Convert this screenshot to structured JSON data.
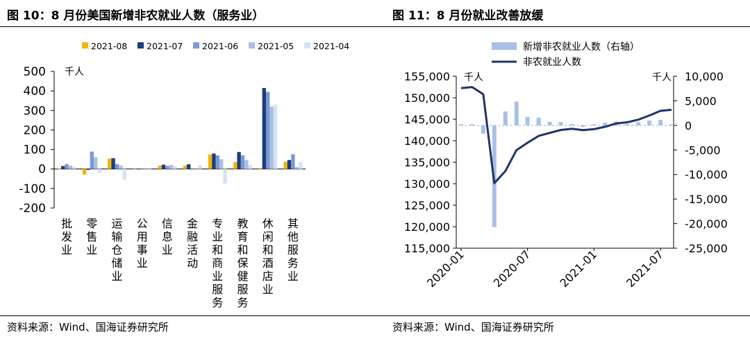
{
  "left": {
    "title": "图 10：8 月份美国新增非农就业人数（服务业）",
    "source": "资料来源：Wind、国海证券研究所",
    "unit": "千人"
  },
  "right": {
    "title": "图 11：8 月份就业改善放缓",
    "source": "资料来源：Wind、国海证券研究所",
    "unit_left": "千人",
    "unit_right": "千人"
  },
  "chart_data": [
    {
      "type": "bar",
      "categories": [
        "批发业",
        "零售业",
        "运输仓储业",
        "公用事业",
        "信息业",
        "金融活动",
        "专业和商业服务",
        "教育和保健服务",
        "休闲和酒店业",
        "其他服务业"
      ],
      "series": [
        {
          "name": "2021-08",
          "color": "#F2B705",
          "values": [
            1,
            -29,
            53,
            -1,
            17,
            18,
            74,
            35,
            0,
            37
          ]
        },
        {
          "name": "2021-07",
          "color": "#1F3F7A",
          "values": [
            15,
            -5,
            55,
            0,
            22,
            24,
            79,
            87,
            415,
            46
          ]
        },
        {
          "name": "2021-06",
          "color": "#7C99D3",
          "values": [
            25,
            89,
            25,
            -1,
            16,
            2,
            70,
            70,
            395,
            75
          ]
        },
        {
          "name": "2021-05",
          "color": "#A9C0E6",
          "values": [
            17,
            60,
            18,
            -1,
            20,
            0,
            50,
            45,
            320,
            10
          ]
        },
        {
          "name": "2021-04",
          "color": "#D6E2F4",
          "values": [
            10,
            -20,
            -55,
            -2,
            15,
            20,
            -75,
            20,
            330,
            35
          ]
        }
      ],
      "ylim": [
        -200,
        500
      ],
      "yticks": [
        -200,
        -100,
        0,
        100,
        200,
        300,
        400,
        500
      ],
      "ylabel": "千人",
      "legend": "top"
    },
    {
      "type": "bar+line",
      "x": [
        "2020-01",
        "2020-02",
        "2020-03",
        "2020-04",
        "2020-05",
        "2020-06",
        "2020-07",
        "2020-08",
        "2020-09",
        "2020-10",
        "2020-11",
        "2020-12",
        "2021-01",
        "2021-02",
        "2021-03",
        "2021-04",
        "2021-05",
        "2021-06",
        "2021-07",
        "2021-08"
      ],
      "xticklabels": [
        "2020-01",
        "2020-07",
        "2021-01",
        "2021-07"
      ],
      "series": [
        {
          "name": "新增非农就业人数（右轴）",
          "type": "bar",
          "axis": "right",
          "color": "#A9C0E6",
          "values": [
            214,
            251,
            -1683,
            -20679,
            2833,
            4846,
            1726,
            1583,
            716,
            680,
            264,
            -306,
            233,
            536,
            785,
            269,
            614,
            962,
            1091,
            235
          ]
        },
        {
          "name": "非农就业人数",
          "type": "line",
          "axis": "left",
          "color": "#1F3268",
          "values": [
            152234,
            152485,
            150802,
            130123,
            132956,
            137802,
            139528,
            141111,
            141827,
            142507,
            142771,
            142465,
            142698,
            143234,
            144019,
            144288,
            144902,
            145864,
            146955,
            147190
          ]
        }
      ],
      "ylim_left": [
        115000,
        155000
      ],
      "yticks_left": [
        115000,
        120000,
        125000,
        130000,
        135000,
        140000,
        145000,
        150000,
        155000
      ],
      "ylim_right": [
        -25000,
        10000
      ],
      "yticks_right": [
        -25000,
        -20000,
        -15000,
        -10000,
        -5000,
        0,
        5000,
        10000
      ],
      "legend": "top"
    }
  ]
}
